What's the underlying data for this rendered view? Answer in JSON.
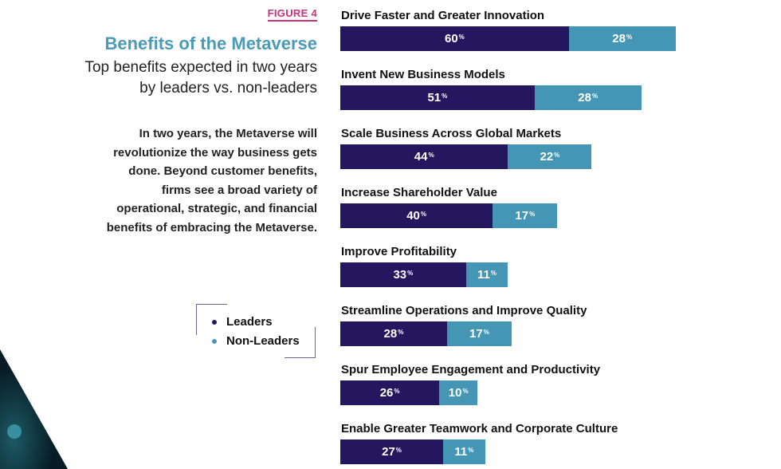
{
  "figure_label": "FIGURE 4",
  "title": "Benefits of the Metaverse",
  "subtitle": "Top benefits expected in two years by leaders vs. non-leaders",
  "description": "In two years, the Metaverse will revolutionize the way business gets done. Beyond customer benefits, firms see a broad variety of operational, strategic, and financial benefits of embracing the Metaverse.",
  "colors": {
    "leaders": "#241760",
    "non_leaders": "#4596b4",
    "title": "#4a9ab8",
    "figure": "#c8327a"
  },
  "chart_data": {
    "type": "bar",
    "orientation": "horizontal",
    "stacked": true,
    "unit": "%",
    "legend_position": "left",
    "categories": [
      "Drive Faster and Greater Innovation",
      "Invent New Business Models",
      "Scale Business Across Global Markets",
      "Increase Shareholder Value",
      "Improve Profitability",
      "Streamline Operations and Improve Quality",
      "Spur Employee Engagement and Productivity",
      "Enable Greater Teamwork and Corporate Culture"
    ],
    "series": [
      {
        "name": "Leaders",
        "values": [
          60,
          51,
          44,
          40,
          33,
          28,
          26,
          27
        ]
      },
      {
        "name": "Non-Leaders",
        "values": [
          28,
          28,
          22,
          17,
          11,
          17,
          10,
          11
        ]
      }
    ]
  }
}
